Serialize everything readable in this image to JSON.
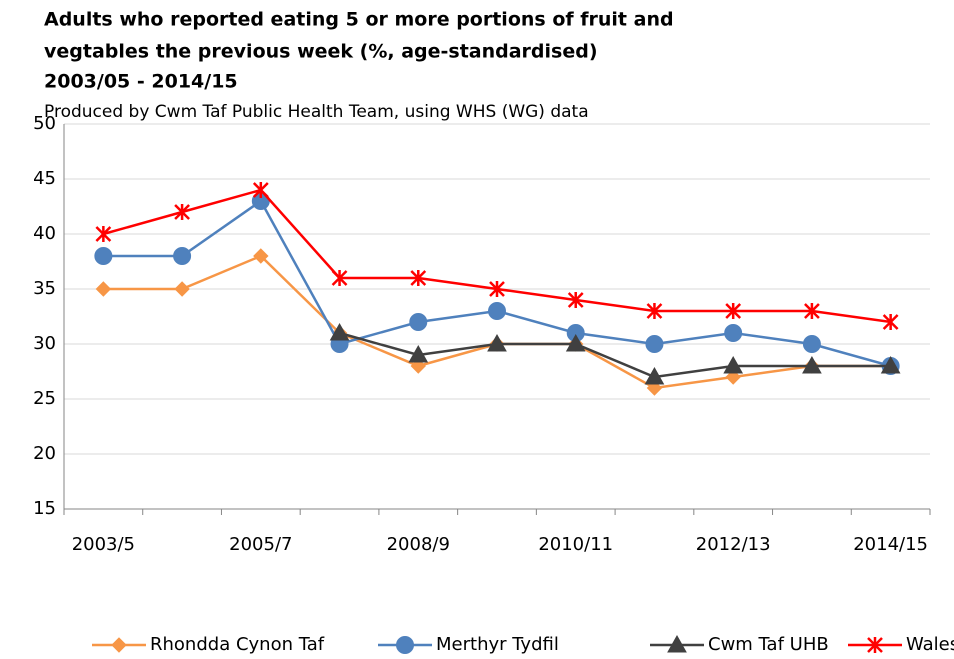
{
  "chart_data": {
    "type": "line",
    "title": [
      "Adults who reported eating 5 or more portions of fruit and",
      "vegtables the previous week (%, age-standardised)",
      "2003/05 - 2014/15"
    ],
    "subtitle": "Produced by Cwm Taf Public Health Team, using WHS (WG) data",
    "categories": [
      "2003/5",
      null,
      "2005/7",
      null,
      "2008/9",
      null,
      "2010/11",
      null,
      "2012/13",
      null,
      "2014/15"
    ],
    "series": [
      {
        "name": "Rhondda Cynon Taf",
        "color": "#F79646",
        "marker": "diamond",
        "values": [
          35,
          35,
          38,
          31,
          28,
          30,
          30,
          26,
          27,
          28,
          28
        ]
      },
      {
        "name": "Merthyr Tydfil",
        "color": "#4F81BD",
        "marker": "circle",
        "values": [
          38,
          38,
          43,
          30,
          32,
          33,
          31,
          30,
          31,
          30,
          28
        ]
      },
      {
        "name": "Cwm Taf UHB",
        "color": "#404040",
        "marker": "triangle",
        "values": [
          null,
          null,
          null,
          31,
          29,
          30,
          30,
          27,
          28,
          28,
          28
        ]
      },
      {
        "name": "Wales",
        "color": "#FF0000",
        "marker": "star",
        "values": [
          40,
          42,
          44,
          36,
          36,
          35,
          34,
          33,
          33,
          33,
          32
        ]
      }
    ],
    "ylim": [
      15,
      50
    ],
    "yticks": [
      15,
      20,
      25,
      30,
      35,
      40,
      45,
      50
    ],
    "grid": true,
    "legend": "bottom"
  }
}
